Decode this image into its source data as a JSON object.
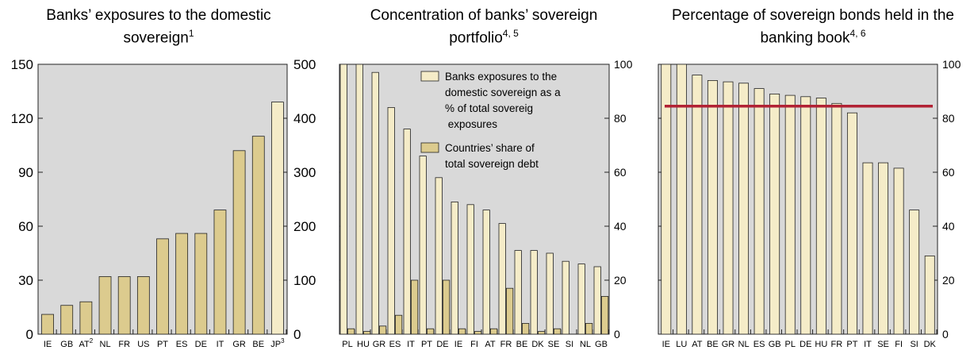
{
  "panels": [
    {
      "title": "Banks’ exposures to the domestic sovereign",
      "title_sup": "1"
    },
    {
      "title": "Concentration of banks’ sovereign portfolio",
      "title_sup": "4, 5"
    },
    {
      "title": "Percentage of sovereign bonds held in the banking book",
      "title_sup": "4, 6"
    }
  ],
  "colors": {
    "bar_light": "#f5ecc8",
    "bar_dark": "#dccb8e",
    "plot_bg": "#d9d9d9",
    "line": "#b22234",
    "stroke": "#222222"
  },
  "chart_data": [
    {
      "type": "bar",
      "title": "Banks’ exposures to the domestic sovereign",
      "title_sup": "1",
      "categories": [
        "IE",
        "GB",
        "AT",
        "NL",
        "FR",
        "US",
        "PT",
        "ES",
        "DE",
        "IT",
        "GR",
        "BE",
        "JP"
      ],
      "category_sups": [
        "",
        "",
        "2",
        "",
        "",
        "",
        "",
        "",
        "",
        "",
        "",
        "",
        "3"
      ],
      "series": [
        {
          "values": [
            11,
            16,
            18,
            32,
            32,
            32,
            53,
            56,
            56,
            69,
            102,
            110,
            null
          ],
          "axis": "left",
          "color": "#dccb8e"
        },
        {
          "values": [
            null,
            null,
            null,
            null,
            null,
            null,
            null,
            null,
            null,
            null,
            null,
            null,
            430
          ],
          "axis": "right",
          "color": "#f5ecc8"
        }
      ],
      "y_left": {
        "min": 0,
        "max": 150,
        "ticks": [
          0,
          30,
          60,
          90,
          120,
          150
        ]
      },
      "y_right": {
        "min": 0,
        "max": 500,
        "ticks": [
          0,
          100,
          200,
          300,
          400,
          500
        ]
      },
      "grid": false
    },
    {
      "type": "bar",
      "title": "Concentration of banks’ sovereign portfolio",
      "title_sup": "4, 5",
      "categories": [
        "PL",
        "HU",
        "GR",
        "ES",
        "IT",
        "PT",
        "DE",
        "IE",
        "FI",
        "AT",
        "FR",
        "BE",
        "DK",
        "SE",
        "SI",
        "NL",
        "GB"
      ],
      "series": [
        {
          "name": "Banks exposures to the domestic sovereign as a % of total sovereign exposures",
          "values": [
            100,
            100,
            97,
            84,
            76,
            66,
            58,
            49,
            48,
            46,
            41,
            31,
            31,
            30,
            27,
            26,
            25
          ],
          "color": "#f5ecc8"
        },
        {
          "name": "Countries’ share of total sovereign debt",
          "values": [
            2,
            1,
            3,
            7,
            20,
            2,
            20,
            2,
            1,
            2,
            17,
            4,
            1,
            2,
            0,
            4,
            14
          ],
          "color": "#dccb8e"
        }
      ],
      "y_left": {
        "min": 0,
        "max": 100,
        "ticks": [
          0,
          20,
          40,
          60,
          80,
          100
        ],
        "labels": false
      },
      "y_right": {
        "min": 0,
        "max": 100,
        "ticks": [
          0,
          20,
          40,
          60,
          80,
          100
        ]
      },
      "legend": "top-right",
      "grid": false
    },
    {
      "type": "bar",
      "title": "Percentage of sovereign bonds held in the banking book",
      "title_sup": "4, 6",
      "categories": [
        "IE",
        "LU",
        "AT",
        "BE",
        "GR",
        "NL",
        "ES",
        "GB",
        "PL",
        "DE",
        "HU",
        "FR",
        "PT",
        "IT",
        "SE",
        "FI",
        "SI",
        "DK"
      ],
      "series": [
        {
          "values": [
            100,
            100,
            96,
            94,
            93.5,
            93,
            91,
            89,
            88.5,
            88,
            87.5,
            85.5,
            82,
            63.5,
            63.5,
            61.5,
            46,
            29
          ],
          "color": "#f5ecc8"
        }
      ],
      "reference_line": {
        "value": 84.5,
        "color": "#b22234"
      },
      "y_left": {
        "min": 0,
        "max": 100,
        "ticks": [
          0,
          20,
          40,
          60,
          80,
          100
        ],
        "labels": false
      },
      "y_right": {
        "min": 0,
        "max": 100,
        "ticks": [
          0,
          20,
          40,
          60,
          80,
          100
        ]
      },
      "grid": false
    }
  ]
}
